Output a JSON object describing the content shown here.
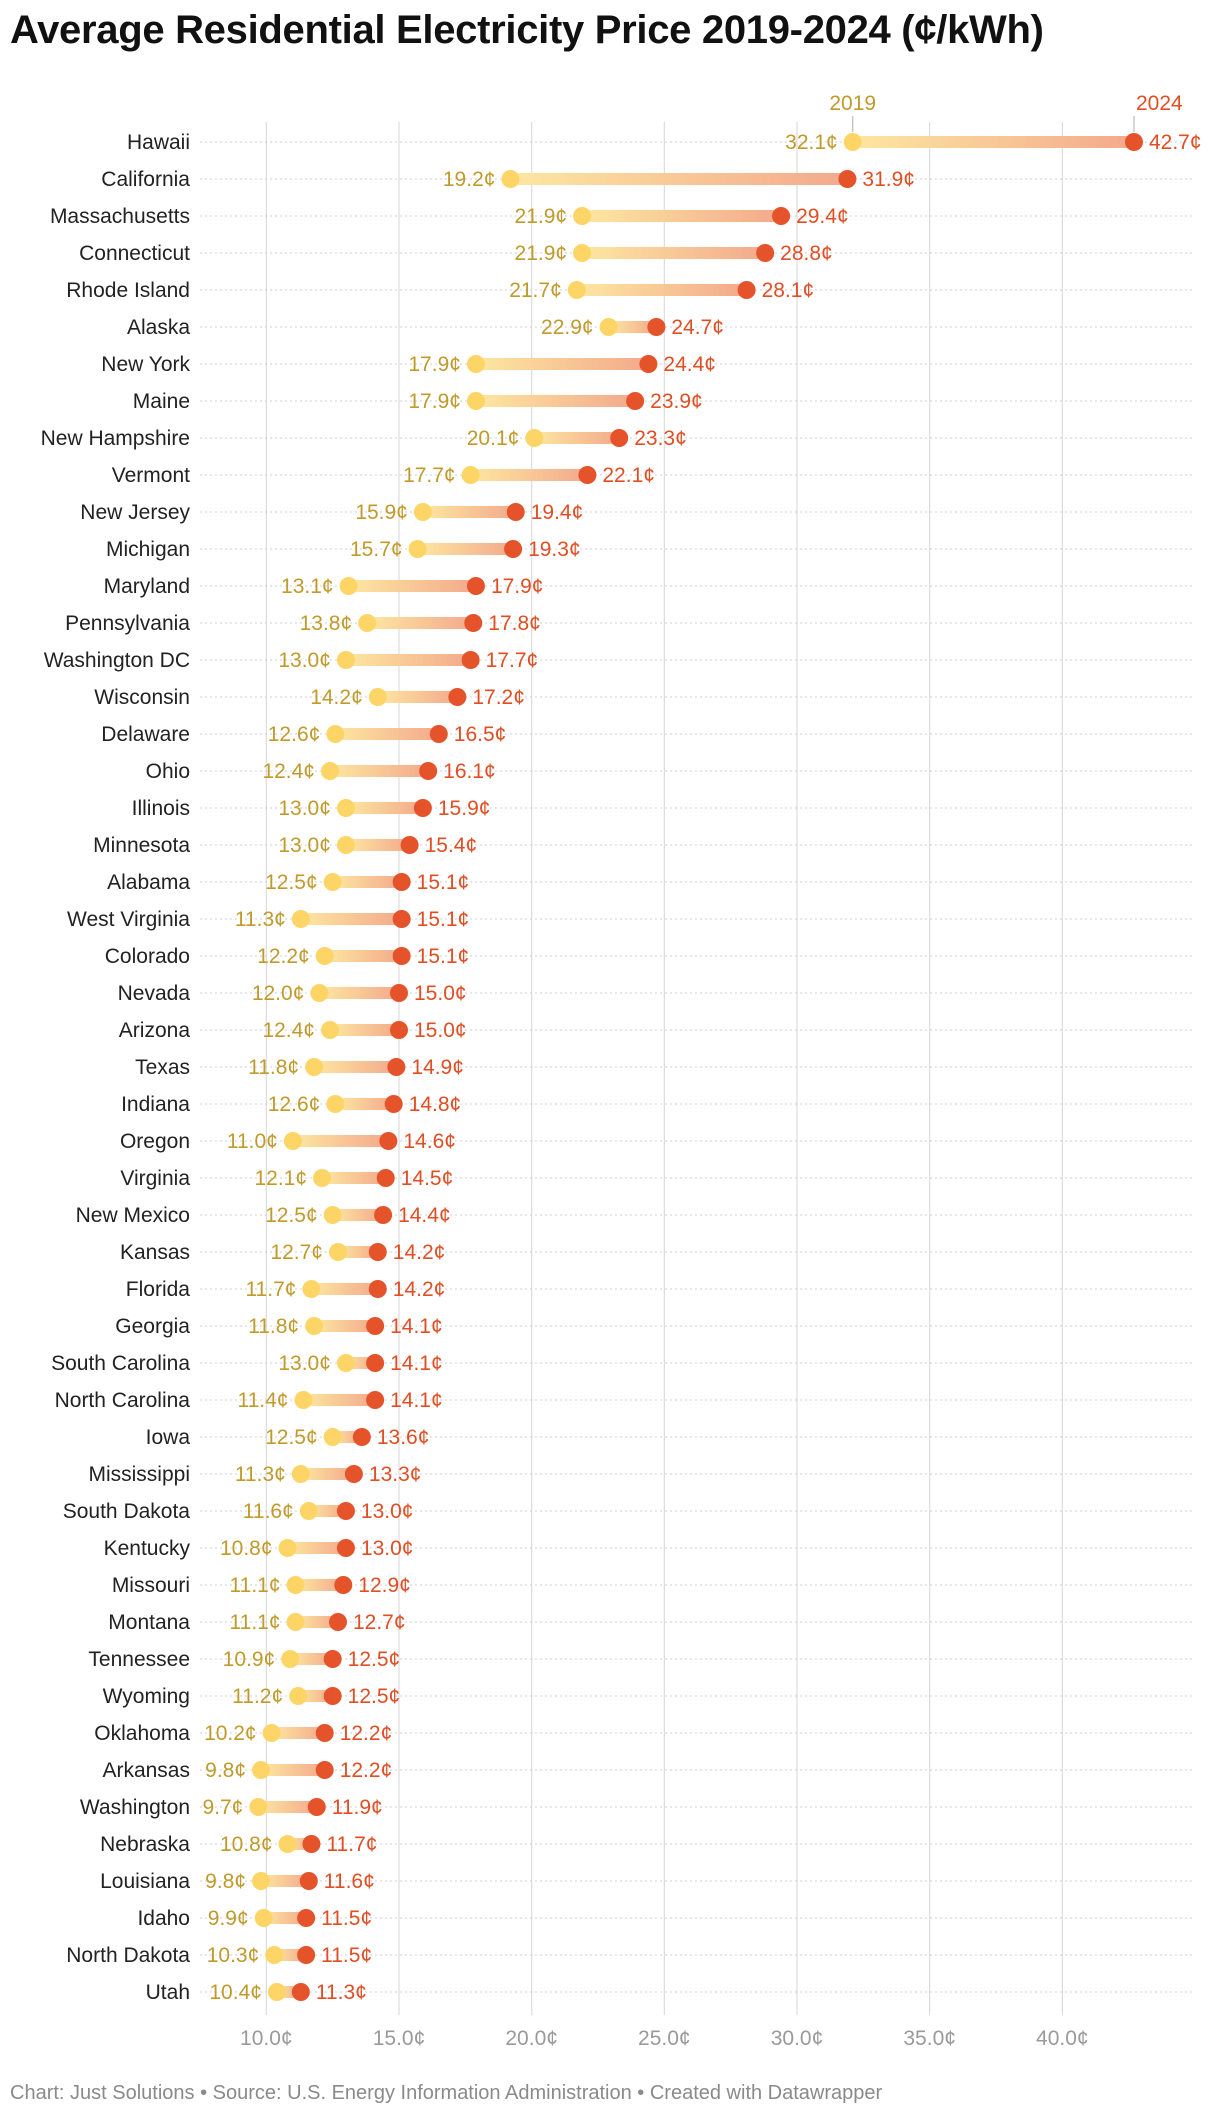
{
  "chart_data": {
    "type": "dumbbell",
    "title": "Average Residential Electricity Price 2019-2024 (¢/kWh)",
    "xlim": [
      7.5,
      45
    ],
    "x_ticks": [
      {
        "value": 10,
        "label": "10.0¢"
      },
      {
        "value": 15,
        "label": "15.0¢"
      },
      {
        "value": 20,
        "label": "20.0¢"
      },
      {
        "value": 25,
        "label": "25.0¢"
      },
      {
        "value": 30,
        "label": "30.0¢"
      },
      {
        "value": 35,
        "label": "35.0¢"
      },
      {
        "value": 40,
        "label": "40.0¢"
      }
    ],
    "legend": {
      "start_label": "2019",
      "end_label": "2024"
    },
    "colors": {
      "start": "#fdd567",
      "end": "#e4532a",
      "start_text": "#c09a2a",
      "end_text": "#e04e24",
      "grid": "#d4d4d4"
    },
    "rows": [
      {
        "state": "Hawaii",
        "v2019": 32.1,
        "v2024": 42.7,
        "label_2019": "32.1¢",
        "label_2024": "42.7¢"
      },
      {
        "state": "California",
        "v2019": 19.2,
        "v2024": 31.9,
        "label_2019": "19.2¢",
        "label_2024": "31.9¢"
      },
      {
        "state": "Massachusetts",
        "v2019": 21.9,
        "v2024": 29.4,
        "label_2019": "21.9¢",
        "label_2024": "29.4¢"
      },
      {
        "state": "Connecticut",
        "v2019": 21.9,
        "v2024": 28.8,
        "label_2019": "21.9¢",
        "label_2024": "28.8¢"
      },
      {
        "state": "Rhode Island",
        "v2019": 21.7,
        "v2024": 28.1,
        "label_2019": "21.7¢",
        "label_2024": "28.1¢"
      },
      {
        "state": "Alaska",
        "v2019": 22.9,
        "v2024": 24.7,
        "label_2019": "22.9¢",
        "label_2024": "24.7¢"
      },
      {
        "state": "New York",
        "v2019": 17.9,
        "v2024": 24.4,
        "label_2019": "17.9¢",
        "label_2024": "24.4¢"
      },
      {
        "state": "Maine",
        "v2019": 17.9,
        "v2024": 23.9,
        "label_2019": "17.9¢",
        "label_2024": "23.9¢"
      },
      {
        "state": "New Hampshire",
        "v2019": 20.1,
        "v2024": 23.3,
        "label_2019": "20.1¢",
        "label_2024": "23.3¢"
      },
      {
        "state": "Vermont",
        "v2019": 17.7,
        "v2024": 22.1,
        "label_2019": "17.7¢",
        "label_2024": "22.1¢"
      },
      {
        "state": "New Jersey",
        "v2019": 15.9,
        "v2024": 19.4,
        "label_2019": "15.9¢",
        "label_2024": "19.4¢"
      },
      {
        "state": "Michigan",
        "v2019": 15.7,
        "v2024": 19.3,
        "label_2019": "15.7¢",
        "label_2024": "19.3¢"
      },
      {
        "state": "Maryland",
        "v2019": 13.1,
        "v2024": 17.9,
        "label_2019": "13.1¢",
        "label_2024": "17.9¢"
      },
      {
        "state": "Pennsylvania",
        "v2019": 13.8,
        "v2024": 17.8,
        "label_2019": "13.8¢",
        "label_2024": "17.8¢"
      },
      {
        "state": "Washington DC",
        "v2019": 13.0,
        "v2024": 17.7,
        "label_2019": "13.0¢",
        "label_2024": "17.7¢"
      },
      {
        "state": "Wisconsin",
        "v2019": 14.2,
        "v2024": 17.2,
        "label_2019": "14.2¢",
        "label_2024": "17.2¢"
      },
      {
        "state": "Delaware",
        "v2019": 12.6,
        "v2024": 16.5,
        "label_2019": "12.6¢",
        "label_2024": "16.5¢"
      },
      {
        "state": "Ohio",
        "v2019": 12.4,
        "v2024": 16.1,
        "label_2019": "12.4¢",
        "label_2024": "16.1¢"
      },
      {
        "state": "Illinois",
        "v2019": 13.0,
        "v2024": 15.9,
        "label_2019": "13.0¢",
        "label_2024": "15.9¢"
      },
      {
        "state": "Minnesota",
        "v2019": 13.0,
        "v2024": 15.4,
        "label_2019": "13.0¢",
        "label_2024": "15.4¢"
      },
      {
        "state": "Alabama",
        "v2019": 12.5,
        "v2024": 15.1,
        "label_2019": "12.5¢",
        "label_2024": "15.1¢"
      },
      {
        "state": "West Virginia",
        "v2019": 11.3,
        "v2024": 15.1,
        "label_2019": "11.3¢",
        "label_2024": "15.1¢"
      },
      {
        "state": "Colorado",
        "v2019": 12.2,
        "v2024": 15.1,
        "label_2019": "12.2¢",
        "label_2024": "15.1¢"
      },
      {
        "state": "Nevada",
        "v2019": 12.0,
        "v2024": 15.0,
        "label_2019": "12.0¢",
        "label_2024": "15.0¢"
      },
      {
        "state": "Arizona",
        "v2019": 12.4,
        "v2024": 15.0,
        "label_2019": "12.4¢",
        "label_2024": "15.0¢"
      },
      {
        "state": "Texas",
        "v2019": 11.8,
        "v2024": 14.9,
        "label_2019": "11.8¢",
        "label_2024": "14.9¢"
      },
      {
        "state": "Indiana",
        "v2019": 12.6,
        "v2024": 14.8,
        "label_2019": "12.6¢",
        "label_2024": "14.8¢"
      },
      {
        "state": "Oregon",
        "v2019": 11.0,
        "v2024": 14.6,
        "label_2019": "11.0¢",
        "label_2024": "14.6¢"
      },
      {
        "state": "Virginia",
        "v2019": 12.1,
        "v2024": 14.5,
        "label_2019": "12.1¢",
        "label_2024": "14.5¢"
      },
      {
        "state": "New Mexico",
        "v2019": 12.5,
        "v2024": 14.4,
        "label_2019": "12.5¢",
        "label_2024": "14.4¢"
      },
      {
        "state": "Kansas",
        "v2019": 12.7,
        "v2024": 14.2,
        "label_2019": "12.7¢",
        "label_2024": "14.2¢"
      },
      {
        "state": "Florida",
        "v2019": 11.7,
        "v2024": 14.2,
        "label_2019": "11.7¢",
        "label_2024": "14.2¢"
      },
      {
        "state": "Georgia",
        "v2019": 11.8,
        "v2024": 14.1,
        "label_2019": "11.8¢",
        "label_2024": "14.1¢"
      },
      {
        "state": "South Carolina",
        "v2019": 13.0,
        "v2024": 14.1,
        "label_2019": "13.0¢",
        "label_2024": "14.1¢"
      },
      {
        "state": "North Carolina",
        "v2019": 11.4,
        "v2024": 14.1,
        "label_2019": "11.4¢",
        "label_2024": "14.1¢"
      },
      {
        "state": "Iowa",
        "v2019": 12.5,
        "v2024": 13.6,
        "label_2019": "12.5¢",
        "label_2024": "13.6¢"
      },
      {
        "state": "Mississippi",
        "v2019": 11.3,
        "v2024": 13.3,
        "label_2019": "11.3¢",
        "label_2024": "13.3¢"
      },
      {
        "state": "South Dakota",
        "v2019": 11.6,
        "v2024": 13.0,
        "label_2019": "11.6¢",
        "label_2024": "13.0¢"
      },
      {
        "state": "Kentucky",
        "v2019": 10.8,
        "v2024": 13.0,
        "label_2019": "10.8¢",
        "label_2024": "13.0¢"
      },
      {
        "state": "Missouri",
        "v2019": 11.1,
        "v2024": 12.9,
        "label_2019": "11.1¢",
        "label_2024": "12.9¢"
      },
      {
        "state": "Montana",
        "v2019": 11.1,
        "v2024": 12.7,
        "label_2019": "11.1¢",
        "label_2024": "12.7¢"
      },
      {
        "state": "Tennessee",
        "v2019": 10.9,
        "v2024": 12.5,
        "label_2019": "10.9¢",
        "label_2024": "12.5¢"
      },
      {
        "state": "Wyoming",
        "v2019": 11.2,
        "v2024": 12.5,
        "label_2019": "11.2¢",
        "label_2024": "12.5¢"
      },
      {
        "state": "Oklahoma",
        "v2019": 10.2,
        "v2024": 12.2,
        "label_2019": "10.2¢",
        "label_2024": "12.2¢"
      },
      {
        "state": "Arkansas",
        "v2019": 9.8,
        "v2024": 12.2,
        "label_2019": "9.8¢",
        "label_2024": "12.2¢"
      },
      {
        "state": "Washington",
        "v2019": 9.7,
        "v2024": 11.9,
        "label_2019": "9.7¢",
        "label_2024": "11.9¢"
      },
      {
        "state": "Nebraska",
        "v2019": 10.8,
        "v2024": 11.7,
        "label_2019": "10.8¢",
        "label_2024": "11.7¢"
      },
      {
        "state": "Louisiana",
        "v2019": 9.8,
        "v2024": 11.6,
        "label_2019": "9.8¢",
        "label_2024": "11.6¢"
      },
      {
        "state": "Idaho",
        "v2019": 9.9,
        "v2024": 11.5,
        "label_2019": "9.9¢",
        "label_2024": "11.5¢"
      },
      {
        "state": "North Dakota",
        "v2019": 10.3,
        "v2024": 11.5,
        "label_2019": "10.3¢",
        "label_2024": "11.5¢"
      },
      {
        "state": "Utah",
        "v2019": 10.4,
        "v2024": 11.3,
        "label_2019": "10.4¢",
        "label_2024": "11.3¢"
      }
    ]
  },
  "footer": "Chart: Just Solutions • Source: U.S. Energy Information Administration • Created with Datawrapper"
}
